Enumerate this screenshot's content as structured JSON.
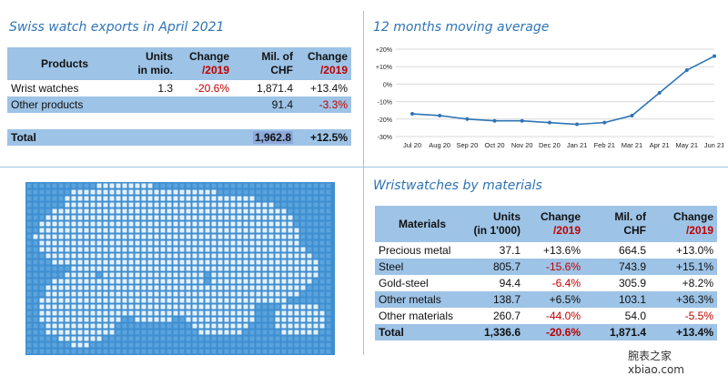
{
  "left_top": {
    "title": "Swiss watch exports in April 2021",
    "headers": {
      "products": "Products",
      "units_l1": "Units",
      "units_l2": "in mio.",
      "change_l1": "Change",
      "change_l2": "/2019",
      "chf_l1": "Mil. of",
      "chf_l2": "CHF",
      "change2_l1": "Change",
      "change2_l2": "/2019"
    },
    "rows": [
      {
        "label": "Wrist watches",
        "units": "1.3",
        "change": "-20.6%",
        "chf": "1,871.4",
        "change2": "+13.4%"
      },
      {
        "label": "Other products",
        "units": "",
        "change": "",
        "chf": "91.4",
        "change2": "-3.3%"
      }
    ],
    "total": {
      "label": "Total",
      "chf": "1,962.8",
      "change2": "+12.5%"
    }
  },
  "chart_data": {
    "type": "line",
    "title": "12 months moving average",
    "categories": [
      "Jul 20",
      "Aug 20",
      "Sep 20",
      "Oct 20",
      "Nov 20",
      "Dec 20",
      "Jan 21",
      "Feb 21",
      "Mar 21",
      "Apr 21",
      "May 21",
      "Jun 21"
    ],
    "series": [
      {
        "values": [
          -17,
          -18,
          -20,
          -21,
          -21,
          -22,
          -23,
          -22,
          -18,
          -5,
          8,
          16
        ]
      }
    ],
    "ylim": [
      -30,
      20
    ],
    "yticks": [
      "+20%",
      "+10%",
      "0%",
      "-10%",
      "-20%",
      "-30%"
    ],
    "grid": "horizontal",
    "line_color": "#2e74b5"
  },
  "right_bottom": {
    "title": "Wristwatches by materials",
    "headers": {
      "materials": "Materials",
      "units_l1": "Units",
      "units_l2": "(in 1'000)",
      "change_l1": "Change",
      "change_l2": "/2019",
      "chf_l1": "Mil. of",
      "chf_l2": "CHF",
      "change2_l1": "Change",
      "change2_l2": "/2019"
    },
    "rows": [
      {
        "label": "Precious metal",
        "units": "37.1",
        "change": "+13.6%",
        "chf": "664.5",
        "change2": "+13.0%"
      },
      {
        "label": "Steel",
        "units": "805.7",
        "change": "-15.6%",
        "chf": "743.9",
        "change2": "+15.1%"
      },
      {
        "label": "Gold-steel",
        "units": "94.4",
        "change": "-6.4%",
        "chf": "305.9",
        "change2": "+8.2%"
      },
      {
        "label": "Other metals",
        "units": "138.7",
        "change": "+6.5%",
        "chf": "103.1",
        "change2": "+36.3%"
      },
      {
        "label": "Other materials",
        "units": "260.7",
        "change": "-44.0%",
        "chf": "54.0",
        "change2": "-5.5%"
      }
    ],
    "total": {
      "label": "Total",
      "units": "1,336.6",
      "change": "-20.6%",
      "chf": "1,871.4",
      "change2": "+13.4%"
    }
  },
  "watermark": "腕表之家 xbiao.com",
  "colors": {
    "accent": "#2e74b5",
    "band": "#9dc3e6",
    "negative_red": "#c00000"
  }
}
